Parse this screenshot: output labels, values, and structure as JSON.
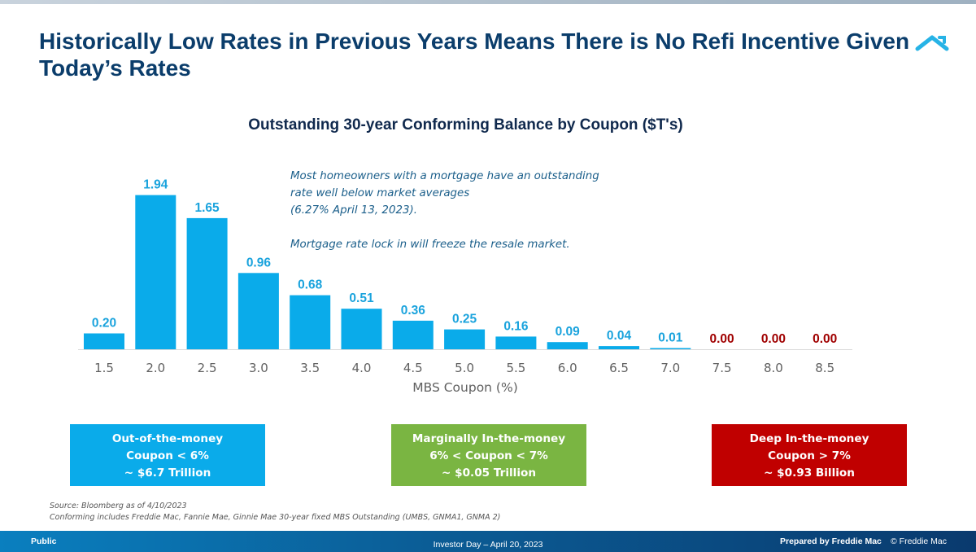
{
  "slide": {
    "title": "Historically Low Rates in Previous Years Means There is No Refi Incentive Given Today’s Rates"
  },
  "chart_data": {
    "type": "bar",
    "title": "Outstanding 30-year Conforming Balance by Coupon ($T's)",
    "xlabel": "MBS Coupon (%)",
    "ylabel": "",
    "categories": [
      "1.5",
      "2.0",
      "2.5",
      "3.0",
      "3.5",
      "4.0",
      "4.5",
      "5.0",
      "5.5",
      "6.0",
      "6.5",
      "7.0",
      "7.5",
      "8.0",
      "8.5"
    ],
    "values": [
      0.2,
      1.94,
      1.65,
      0.96,
      0.68,
      0.51,
      0.36,
      0.25,
      0.16,
      0.09,
      0.04,
      0.01,
      0.0,
      0.0,
      0.0
    ],
    "value_labels": [
      "0.20",
      "1.94",
      "1.65",
      "0.96",
      "0.68",
      "0.51",
      "0.36",
      "0.25",
      "0.16",
      "0.09",
      "0.04",
      "0.01",
      "0.00",
      "0.00",
      "0.00"
    ],
    "ylim": [
      0,
      2.1
    ],
    "grid": false,
    "bar_color": "#0aabea",
    "label_color": "#1aa3dd",
    "zero_label_color": "#a00000"
  },
  "annotation": {
    "lines": [
      "Most homeowners with a mortgage have an outstanding",
      "rate well below market averages",
      "(6.27% April 13, 2023).",
      "Mortgage rate lock in will freeze the resale market."
    ]
  },
  "boxes": [
    {
      "lines": [
        "Out-of-the-money",
        "Coupon < 6%",
        "~ $6.7 Trillion"
      ],
      "color": "#0aabea"
    },
    {
      "lines": [
        "Marginally In-the-money",
        "6% < Coupon < 7%",
        "~ $0.05 Trillion"
      ],
      "color": "#7ab542"
    },
    {
      "lines": [
        "Deep In-the-money",
        "Coupon > 7%",
        "~ $0.93 Billion"
      ],
      "color": "#c00000"
    }
  ],
  "source": {
    "line1": "Source: Bloomberg as of 4/10/2023",
    "line2": "Conforming includes Freddie Mac, Fannie Mae, Ginnie Mae 30-year fixed MBS Outstanding (UMBS, GNMA1, GNMA 2)"
  },
  "footer": {
    "classification": "Public",
    "event": "Investor Day – April 20, 2023",
    "prepared_by": "Prepared by Freddie Mac",
    "copyright": "© Freddie Mac"
  }
}
